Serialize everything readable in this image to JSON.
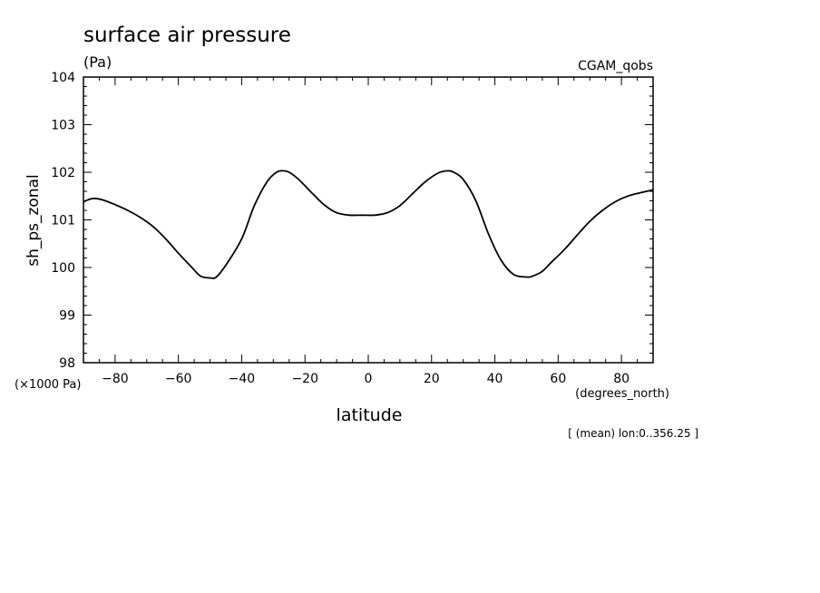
{
  "chart_data": {
    "type": "line",
    "title": "surface air pressure",
    "units": "(Pa)",
    "dataset": "CGAM_qobs",
    "ylabel": "sh_ps_zonal",
    "xlabel": "latitude",
    "xunits": "(degrees_north)",
    "yscale_label": "(×1000 Pa)",
    "footnote": "[ (mean) lon:0..356.25 ]",
    "xlim": [
      -90,
      90
    ],
    "ylim": [
      98,
      104
    ],
    "xticks": [
      -80,
      -60,
      -40,
      -20,
      0,
      20,
      40,
      60,
      80
    ],
    "xtick_labels": [
      "−80",
      "−60",
      "−40",
      "−20",
      "0",
      "20",
      "40",
      "60",
      "80"
    ],
    "yticks": [
      98,
      99,
      100,
      101,
      102,
      103,
      104
    ],
    "ytick_labels": [
      "98",
      "99",
      "100",
      "101",
      "102",
      "103",
      "104"
    ],
    "grid": false,
    "series": [
      {
        "x": [
          -90,
          -87,
          -84,
          -80,
          -76,
          -72,
          -68,
          -64,
          -60,
          -56,
          -53,
          -50,
          -48,
          -45,
          -40,
          -36,
          -32,
          -29,
          -27,
          -25,
          -22,
          -18,
          -14,
          -10,
          -6,
          -2,
          2,
          6,
          10,
          14,
          18,
          22,
          25,
          27,
          30,
          34,
          38,
          42,
          46,
          50,
          52,
          55,
          58,
          62,
          66,
          70,
          74,
          78,
          82,
          86,
          90
        ],
        "y": [
          101.38,
          101.45,
          101.42,
          101.32,
          101.2,
          101.05,
          100.86,
          100.6,
          100.3,
          100.02,
          99.82,
          99.78,
          99.8,
          100.05,
          100.6,
          101.3,
          101.8,
          102.0,
          102.03,
          102.0,
          101.85,
          101.58,
          101.32,
          101.15,
          101.1,
          101.1,
          101.1,
          101.15,
          101.3,
          101.55,
          101.8,
          101.98,
          102.03,
          102.0,
          101.85,
          101.4,
          100.7,
          100.15,
          99.85,
          99.8,
          99.82,
          99.92,
          100.12,
          100.38,
          100.68,
          100.97,
          101.2,
          101.38,
          101.5,
          101.57,
          101.63
        ]
      }
    ]
  }
}
